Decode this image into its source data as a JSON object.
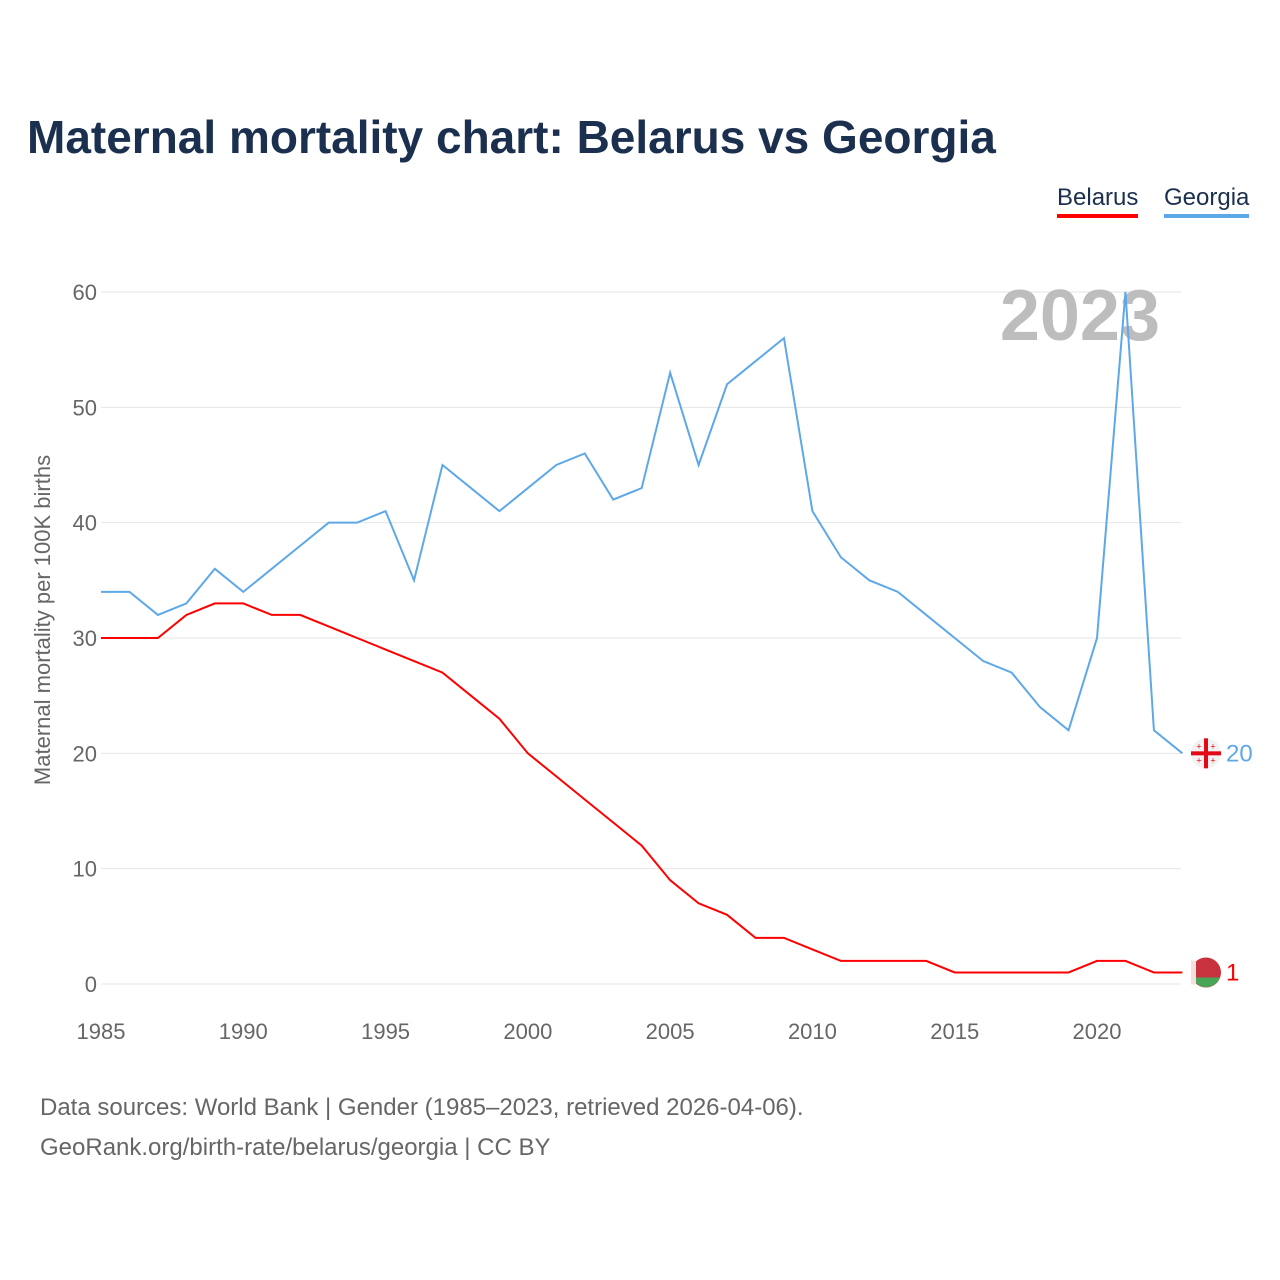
{
  "title": "Maternal mortality chart: Belarus vs Georgia",
  "year_badge": "2023",
  "footer": {
    "line1": "Data sources: World Bank | Gender (1985–2023, retrieved 2026-04-06).",
    "line2": "GeoRank.org/birth-rate/belarus/georgia | CC BY"
  },
  "chart_data": {
    "type": "line",
    "title": "Maternal mortality chart: Belarus vs Georgia",
    "xlabel": "",
    "ylabel": "Maternal mortality per 100K births",
    "xlim": [
      1985,
      2023
    ],
    "ylim": [
      0,
      60
    ],
    "xticks": [
      "1985",
      "1990",
      "1995",
      "2000",
      "2005",
      "2010",
      "2015",
      "2020"
    ],
    "yticks": [
      "0",
      "10",
      "20",
      "30",
      "40",
      "50",
      "60"
    ],
    "grid": true,
    "legend_position": "top-right",
    "x": [
      1985,
      1986,
      1987,
      1988,
      1989,
      1990,
      1991,
      1992,
      1993,
      1994,
      1995,
      1996,
      1997,
      1998,
      1999,
      2000,
      2001,
      2002,
      2003,
      2004,
      2005,
      2006,
      2007,
      2008,
      2009,
      2010,
      2011,
      2012,
      2013,
      2014,
      2015,
      2016,
      2017,
      2018,
      2019,
      2020,
      2021,
      2022,
      2023
    ],
    "series": [
      {
        "name": "Belarus",
        "color": "#ff0000",
        "end_label": "1",
        "values": [
          30,
          30,
          30,
          32,
          33,
          33,
          32,
          32,
          31,
          30,
          29,
          28,
          27,
          25,
          23,
          20,
          18,
          16,
          14,
          12,
          9,
          7,
          6,
          4,
          4,
          3,
          2,
          2,
          2,
          2,
          1,
          1,
          1,
          1,
          1,
          2,
          2,
          1,
          1
        ]
      },
      {
        "name": "Georgia",
        "color": "#5ea8e8",
        "end_label": "20",
        "values": [
          34,
          34,
          32,
          33,
          36,
          34,
          36,
          38,
          40,
          40,
          41,
          35,
          45,
          43,
          41,
          43,
          45,
          46,
          42,
          43,
          53,
          45,
          52,
          54,
          56,
          41,
          37,
          35,
          34,
          32,
          30,
          28,
          27,
          24,
          22,
          30,
          60,
          22,
          20
        ]
      }
    ]
  }
}
